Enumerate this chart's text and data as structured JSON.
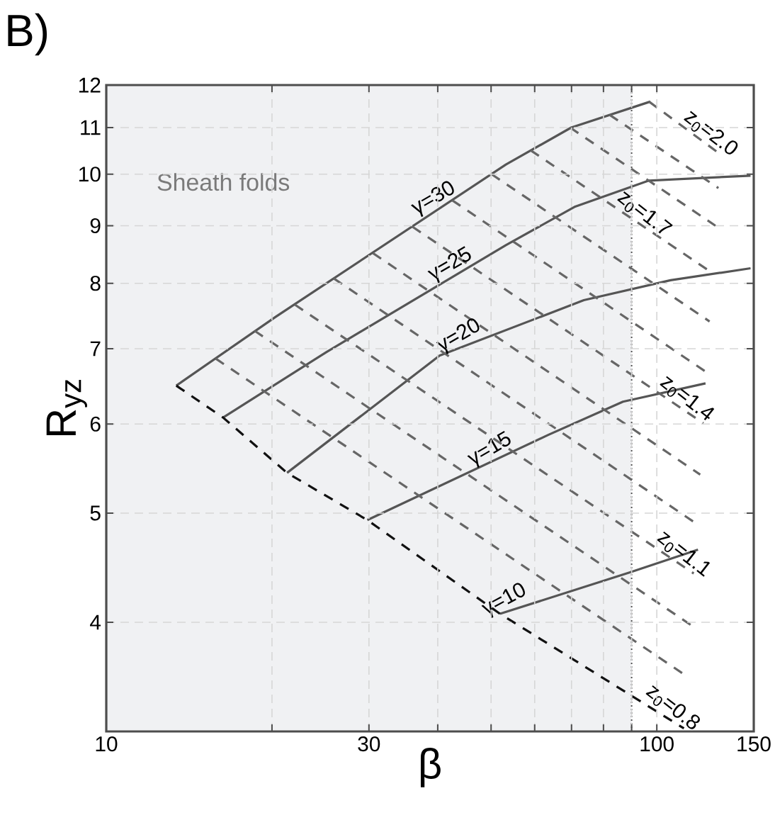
{
  "chart_data": {
    "type": "line",
    "title": "B)",
    "xlabel": "β",
    "ylabel": "R$_{yz}$",
    "log": "xy",
    "grid": true,
    "xlim": [
      10,
      150
    ],
    "ylim": [
      3.2,
      12
    ],
    "xticks": [
      10,
      {
        "value": 20,
        "label": null
      },
      30,
      {
        "value": 40,
        "label": null
      },
      {
        "value": 50,
        "label": null
      },
      {
        "value": 60,
        "label": null
      },
      {
        "value": 70,
        "label": null
      },
      {
        "value": 80,
        "label": null
      },
      {
        "value": 90,
        "label": null
      },
      100,
      150
    ],
    "yticks": [
      4,
      5,
      6,
      7,
      8,
      9,
      10,
      11,
      12
    ],
    "bands": [
      {
        "axis": "x",
        "from": 10,
        "to": 90,
        "label": "Sheath folds",
        "color": "#f0f1f3"
      }
    ],
    "ref_lines": [
      {
        "axis": "x",
        "value": 90,
        "color": "#555555",
        "line_style": "dotted"
      }
    ],
    "series": [
      {
        "color": "#555555",
        "line_style": "solid",
        "x": [
          13.4,
          20.3,
          53.2,
          69.9,
          97.3
        ],
        "values": [
          6.49,
          7.47,
          10.2,
          11.0,
          11.6
        ]
      },
      {
        "color": "#555555",
        "line_style": "solid",
        "x": [
          16.3,
          25.1,
          53.2,
          71.1,
          96.7,
          148
        ],
        "values": [
          6.08,
          6.95,
          8.65,
          9.36,
          9.87,
          9.97
        ]
      },
      {
        "color": "#555555",
        "line_style": "solid",
        "x": [
          21.3,
          40.3,
          73.7,
          105.9,
          148
        ],
        "values": [
          5.43,
          6.9,
          7.73,
          8.05,
          8.25
        ]
      },
      {
        "color": "#555555",
        "line_style": "solid",
        "x": [
          29.8,
          63.6,
          86.8,
          122.6
        ],
        "values": [
          4.93,
          5.87,
          6.28,
          6.52
        ]
      },
      {
        "color": "#555555",
        "line_style": "solid",
        "x": [
          51.9,
          89.4,
          118.8
        ],
        "values": [
          4.07,
          4.43,
          4.64
        ]
      },
      {
        "color": "#111111",
        "line_style": "dashed",
        "x": [
          13.4,
          16.3,
          21.3,
          29.8,
          51.9,
          112
        ],
        "values": [
          6.49,
          6.08,
          5.43,
          4.93,
          4.07,
          3.22
        ]
      },
      {
        "color": "#666666",
        "line_style": "dashed",
        "x": [
          15.8,
          113.6
        ],
        "values": [
          6.86,
          3.58
        ]
      },
      {
        "color": "#666666",
        "line_style": "dashed",
        "x": [
          18.6,
          115.2
        ],
        "values": [
          7.26,
          3.98
        ]
      },
      {
        "color": "#666666",
        "line_style": "dashed",
        "x": [
          22.0,
          116.7
        ],
        "values": [
          7.66,
          4.42
        ]
      },
      {
        "color": "#666666",
        "line_style": "dashed",
        "x": [
          25.9,
          118.3
        ],
        "values": [
          8.08,
          4.89
        ]
      },
      {
        "color": "#666666",
        "line_style": "dashed",
        "x": [
          30.5,
          119.9
        ],
        "values": [
          8.51,
          5.41
        ]
      },
      {
        "color": "#666666",
        "line_style": "dashed",
        "x": [
          36.0,
          121.5
        ],
        "values": [
          8.98,
          6.01
        ]
      },
      {
        "color": "#666666",
        "line_style": "dashed",
        "x": [
          42.5,
          123.1
        ],
        "values": [
          9.48,
          6.67
        ]
      },
      {
        "color": "#666666",
        "line_style": "dashed",
        "x": [
          50.1,
          124.7
        ],
        "values": [
          10.0,
          7.4
        ]
      },
      {
        "color": "#666666",
        "line_style": "dashed",
        "x": [
          59.0,
          126.2
        ],
        "values": [
          10.5,
          8.17
        ]
      },
      {
        "color": "#666666",
        "line_style": "dashed",
        "x": [
          69.6,
          127.8
        ],
        "values": [
          11.0,
          9.0
        ]
      },
      {
        "color": "#666666",
        "line_style": "dashed",
        "x": [
          82.1,
          129.4
        ],
        "values": [
          11.29,
          9.72
        ]
      },
      {
        "color": "#666666",
        "line_style": "dashed",
        "x": [
          96.8,
          131
        ],
        "values": [
          11.6,
          10.4
        ]
      }
    ],
    "annotations": [
      {
        "text": "γ=30",
        "x": 40.3,
        "y": 9.32
      },
      {
        "text": "γ=25",
        "x": 43.2,
        "y": 8.14
      },
      {
        "text": "γ=20",
        "x": 44.8,
        "y": 7.04
      },
      {
        "text": "γ=15",
        "x": 51.0,
        "y": 5.58
      },
      {
        "text": "γ=10",
        "x": 54.1,
        "y": 4.1
      },
      {
        "text": "z$_{0}$=2.0",
        "x": 121.8,
        "y": 10.68
      },
      {
        "text": "z$_{0}$=1.7",
        "x": 92.2,
        "y": 9.06
      },
      {
        "text": "z$_{0}$=1.4",
        "x": 110.2,
        "y": 6.21
      },
      {
        "text": "z$_{0}$=1.1",
        "x": 108.9,
        "y": 4.52
      },
      {
        "text": "z$_{0}$=0.8",
        "x": 103.9,
        "y": 3.3
      }
    ]
  }
}
